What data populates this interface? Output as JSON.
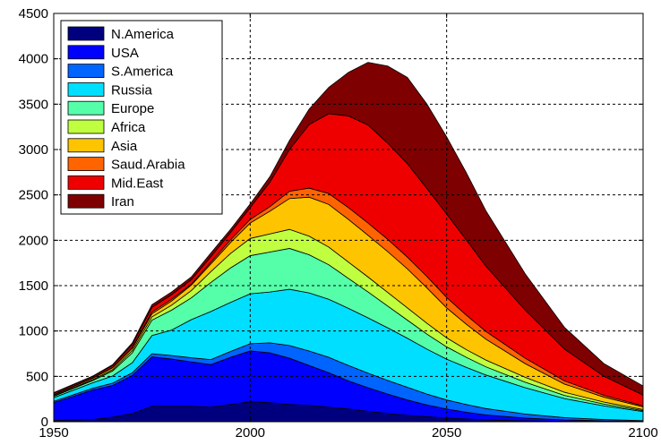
{
  "chart_data": {
    "type": "area",
    "stacked": true,
    "title": "",
    "xlabel": "",
    "ylabel": "",
    "xlim": [
      1950,
      2100
    ],
    "ylim": [
      0,
      4500
    ],
    "xticks": [
      1950,
      2000,
      2050,
      2100
    ],
    "yticks": [
      0,
      500,
      1000,
      1500,
      2000,
      2500,
      3000,
      3500,
      4000,
      4500
    ],
    "grid": true,
    "legend_position": "top-left",
    "x": [
      1950,
      1960,
      1965,
      1970,
      1975,
      1980,
      1985,
      1990,
      1995,
      2000,
      2005,
      2010,
      2015,
      2020,
      2025,
      2030,
      2035,
      2040,
      2045,
      2050,
      2055,
      2060,
      2070,
      2080,
      2090,
      2100
    ],
    "series": [
      {
        "name": "N.America",
        "color": "#00007f",
        "values": [
          15,
          25,
          50,
          90,
          170,
          170,
          170,
          160,
          190,
          220,
          210,
          190,
          180,
          160,
          140,
          115,
          90,
          70,
          55,
          40,
          30,
          20,
          10,
          5,
          3,
          1
        ]
      },
      {
        "name": "USA",
        "color": "#0000ff",
        "values": [
          195,
          325,
          350,
          420,
          545,
          520,
          490,
          470,
          520,
          560,
          550,
          510,
          440,
          380,
          310,
          260,
          215,
          170,
          130,
          100,
          75,
          55,
          30,
          15,
          8,
          4
        ]
      },
      {
        "name": "S.America",
        "color": "#0064ff",
        "values": [
          15,
          20,
          25,
          30,
          35,
          40,
          45,
          55,
          65,
          80,
          110,
          140,
          160,
          170,
          170,
          160,
          150,
          140,
          120,
          100,
          85,
          70,
          45,
          25,
          14,
          7
        ]
      },
      {
        "name": "Russia",
        "color": "#00dfff",
        "values": [
          40,
          60,
          80,
          110,
          200,
          280,
          420,
          530,
          540,
          550,
          560,
          620,
          640,
          640,
          630,
          610,
          580,
          540,
          495,
          450,
          410,
          370,
          290,
          210,
          150,
          100
        ]
      },
      {
        "name": "Europe",
        "color": "#55ffaa",
        "values": [
          15,
          25,
          55,
          110,
          170,
          220,
          240,
          320,
          380,
          420,
          440,
          450,
          420,
          380,
          330,
          285,
          240,
          200,
          165,
          135,
          110,
          90,
          60,
          35,
          20,
          10
        ]
      },
      {
        "name": "Africa",
        "color": "#c0ff3f",
        "values": [
          5,
          10,
          15,
          25,
          35,
          55,
          80,
          120,
          160,
          190,
          200,
          210,
          205,
          195,
          180,
          165,
          150,
          135,
          120,
          100,
          85,
          75,
          55,
          35,
          22,
          12
        ]
      },
      {
        "name": "Asia",
        "color": "#ffc400",
        "values": [
          10,
          15,
          20,
          25,
          35,
          45,
          60,
          85,
          120,
          170,
          250,
          340,
          430,
          470,
          470,
          460,
          450,
          430,
          390,
          330,
          280,
          230,
          150,
          90,
          55,
          30
        ]
      },
      {
        "name": "Saud.Arabia",
        "color": "#ff6400",
        "values": [
          5,
          5,
          5,
          10,
          20,
          20,
          10,
          20,
          30,
          40,
          50,
          80,
          100,
          120,
          130,
          135,
          135,
          130,
          125,
          115,
          100,
          85,
          60,
          35,
          20,
          10
        ]
      },
      {
        "name": "Mid.East",
        "color": "#ef0000",
        "values": [
          15,
          15,
          20,
          30,
          50,
          50,
          50,
          60,
          80,
          130,
          270,
          460,
          700,
          880,
          1010,
          1080,
          1060,
          1030,
          970,
          920,
          830,
          720,
          530,
          350,
          210,
          120
        ]
      },
      {
        "name": "Iran",
        "color": "#7f0000",
        "values": [
          5,
          5,
          10,
          20,
          30,
          30,
          30,
          40,
          35,
          40,
          60,
          100,
          170,
          290,
          480,
          690,
          850,
          950,
          930,
          850,
          740,
          610,
          400,
          240,
          140,
          100
        ]
      }
    ]
  }
}
